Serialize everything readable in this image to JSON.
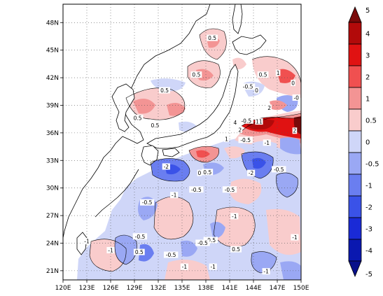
{
  "map": {
    "lon_labels": [
      "120E",
      "123E",
      "126E",
      "129E",
      "132E",
      "135E",
      "138E",
      "141E",
      "144E",
      "147E",
      "150E"
    ],
    "lat_labels": [
      "21N",
      "24N",
      "27N",
      "30N",
      "33N",
      "36N",
      "39N",
      "42N",
      "45N",
      "48N"
    ],
    "lon_range": [
      120,
      150
    ],
    "lat_range": [
      20,
      50
    ],
    "grid": "dotted",
    "contour_labels": [
      {
        "text": "0.5",
        "lon": 138.8,
        "lat": 46.3
      },
      {
        "text": "0.5",
        "lon": 136.8,
        "lat": 42.3
      },
      {
        "text": "0.5",
        "lon": 132.8,
        "lat": 40.6
      },
      {
        "text": "0.5",
        "lon": 131.6,
        "lat": 36.8
      },
      {
        "text": "0.5",
        "lon": 129.4,
        "lat": 37.6
      },
      {
        "text": "-0.5",
        "lon": 143.3,
        "lat": 41.0
      },
      {
        "text": "0.5",
        "lon": 145.2,
        "lat": 42.3
      },
      {
        "text": "1",
        "lon": 147.1,
        "lat": 42.5
      },
      {
        "text": "2",
        "lon": 146.0,
        "lat": 38.7
      },
      {
        "text": "-0",
        "lon": 149.4,
        "lat": 39.8
      },
      {
        "text": "4",
        "lon": 141.7,
        "lat": 37.1
      },
      {
        "text": "-0.5",
        "lon": 143.1,
        "lat": 37.3
      },
      {
        "text": "11",
        "lon": 144.7,
        "lat": 37.2
      },
      {
        "text": "2",
        "lon": 142.3,
        "lat": 36.3
      },
      {
        "text": "1",
        "lon": 140.6,
        "lat": 35.3
      },
      {
        "text": "-0.5",
        "lon": 143.0,
        "lat": 35.2
      },
      {
        "text": "-1",
        "lon": 145.7,
        "lat": 34.9
      },
      {
        "text": "2",
        "lon": 149.2,
        "lat": 36.2
      },
      {
        "text": "-2",
        "lon": 133.0,
        "lat": 32.3
      },
      {
        "text": "-1",
        "lon": 134.0,
        "lat": 29.2
      },
      {
        "text": "-0.5",
        "lon": 130.6,
        "lat": 28.4
      },
      {
        "text": "-0.5",
        "lon": 136.8,
        "lat": 29.8
      },
      {
        "text": "0.5",
        "lon": 138.2,
        "lat": 31.7
      },
      {
        "text": "-0.5",
        "lon": 141.0,
        "lat": 29.8
      },
      {
        "text": "-2",
        "lon": 143.7,
        "lat": 31.6
      },
      {
        "text": "-0.5",
        "lon": 147.2,
        "lat": 32.0
      },
      {
        "text": "-1",
        "lon": 141.6,
        "lat": 26.9
      },
      {
        "text": "-0.5",
        "lon": 129.7,
        "lat": 24.7
      },
      {
        "text": "-1",
        "lon": 126.0,
        "lat": 23.2
      },
      {
        "text": "0.5",
        "lon": 129.6,
        "lat": 23.0
      },
      {
        "text": "-0.5",
        "lon": 133.6,
        "lat": 22.7
      },
      {
        "text": "-1",
        "lon": 135.3,
        "lat": 21.4
      },
      {
        "text": "-0.5",
        "lon": 138.6,
        "lat": 24.3
      },
      {
        "text": "-0.5",
        "lon": 137.6,
        "lat": 24.0
      },
      {
        "text": "-1",
        "lon": 138.9,
        "lat": 21.4
      },
      {
        "text": "0.5",
        "lon": 141.8,
        "lat": 23.3
      },
      {
        "text": "-1",
        "lon": 145.6,
        "lat": 20.9
      },
      {
        "text": "0",
        "lon": 137.2,
        "lat": 31.6
      },
      {
        "text": "0",
        "lon": 144.4,
        "lat": 40.6
      },
      {
        "text": "0",
        "lon": 149.0,
        "lat": 41.4
      },
      {
        "text": "-1",
        "lon": 149.2,
        "lat": 24.6
      },
      {
        "text": "-1",
        "lon": 123.0,
        "lat": 24.2
      }
    ]
  },
  "colorbar": {
    "labels": [
      "5",
      "4",
      "3",
      "2",
      "1",
      "0.5",
      "0",
      "-0.5",
      "-1",
      "-2",
      "-3",
      "-4",
      "-5"
    ],
    "colors": [
      "#7a0a0a",
      "#b20a0a",
      "#e01212",
      "#f05050",
      "#f39494",
      "#f9cccc",
      "#cfd6f8",
      "#9aa8f4",
      "#6a7ef0",
      "#3a52e8",
      "#1a2ad6",
      "#0a18b0",
      "#08108a"
    ],
    "ocean_color": "#ffffff",
    "land_color": "#ffffff"
  }
}
